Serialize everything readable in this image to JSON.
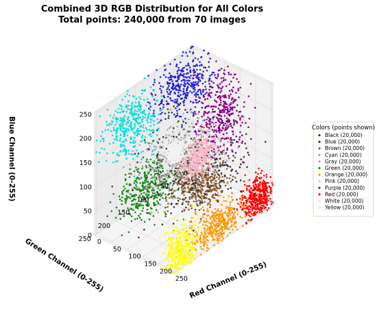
{
  "chart_data": {
    "type": "scatter",
    "title": "Combined 3D RGB Distribution for All Colors",
    "subtitle": "Total points: 240,000 from 70 images",
    "xlabel": "Red Channel (0-255)",
    "ylabel": "Green Channel (0-255)",
    "zlabel": "Blue Channel (0-255)",
    "x_ticks": [
      "0",
      "50",
      "100",
      "150",
      "200",
      "250"
    ],
    "y_ticks": [
      "0",
      "50",
      "100",
      "150",
      "200",
      "250"
    ],
    "z_ticks": [
      "0",
      "50",
      "100",
      "150",
      "200",
      "250"
    ],
    "xlim": [
      0,
      255
    ],
    "ylim": [
      0,
      255
    ],
    "zlim": [
      0,
      255
    ],
    "grid": true,
    "legend": {
      "title": "Colors (points shown)",
      "placement": "right"
    },
    "series": [
      {
        "name": "Black (20,000)",
        "color": "#333333",
        "center": [
          120,
          100,
          95
        ],
        "spread": [
          55,
          50,
          40
        ]
      },
      {
        "name": "Blue (20,000)",
        "color": "#1f1fe0",
        "center": [
          40,
          60,
          215
        ],
        "spread": [
          30,
          35,
          25
        ]
      },
      {
        "name": "Brown (20,000)",
        "color": "#8b5a2b",
        "center": [
          140,
          95,
          60
        ],
        "spread": [
          30,
          25,
          20
        ]
      },
      {
        "name": "Cyan (20,000)",
        "color": "#00e0e0",
        "center": [
          30,
          185,
          200
        ],
        "spread": [
          25,
          30,
          30
        ]
      },
      {
        "name": "Gray (20,000)",
        "color": "#a9a9a9",
        "center": [
          150,
          150,
          145
        ],
        "spread": [
          40,
          40,
          35
        ]
      },
      {
        "name": "Green (20,000)",
        "color": "#148a14",
        "center": [
          40,
          150,
          50
        ],
        "spread": [
          25,
          35,
          25
        ]
      },
      {
        "name": "Orange (20,000)",
        "color": "#ff9900",
        "center": [
          235,
          130,
          25
        ],
        "spread": [
          15,
          30,
          20
        ]
      },
      {
        "name": "Pink (20,000)",
        "color": "#ffb6c8",
        "center": [
          240,
          180,
          195
        ],
        "spread": [
          12,
          25,
          20
        ]
      },
      {
        "name": "Purple (20,000)",
        "color": "#8b008b",
        "center": [
          130,
          35,
          170
        ],
        "spread": [
          30,
          20,
          40
        ]
      },
      {
        "name": "Red (20,000)",
        "color": "#ff0000",
        "center": [
          235,
          25,
          25
        ],
        "spread": [
          15,
          18,
          18
        ]
      },
      {
        "name": "White (20,000)",
        "color": "#f2f2f2",
        "center": [
          240,
          240,
          240
        ],
        "spread": [
          10,
          10,
          10
        ]
      },
      {
        "name": "Yellow (20,000)",
        "color": "#ffff00",
        "center": [
          240,
          225,
          30
        ],
        "spread": [
          12,
          20,
          25
        ]
      }
    ]
  }
}
